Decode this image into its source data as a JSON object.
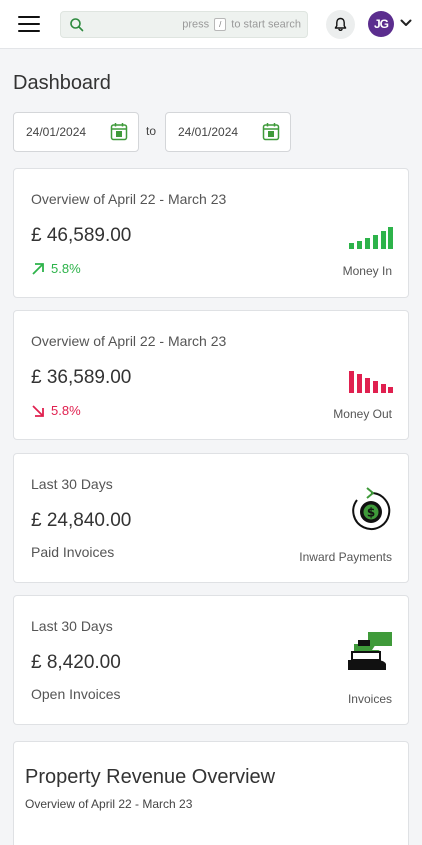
{
  "header": {
    "search": {
      "placeholder": "",
      "hint_before": "press",
      "hint_key": "/",
      "hint_after": "to start search"
    },
    "avatar_initials": "JG"
  },
  "page": {
    "title": "Dashboard",
    "date_from": "24/01/2024",
    "date_to": "24/01/2024",
    "to_label": "to"
  },
  "cards": [
    {
      "subtitle": "Overview of April 22 - March 23",
      "amount": "£ 46,589.00",
      "change": "5.8%",
      "change_direction": "up",
      "label": "Money In",
      "icon": "bar-chart-up-icon",
      "color": "#2db34a"
    },
    {
      "subtitle": "Overview of April 22 - March 23",
      "amount": "£ 36,589.00",
      "change": "5.8%",
      "change_direction": "down",
      "label": "Money Out",
      "icon": "bar-chart-down-icon",
      "color": "#e0204f"
    },
    {
      "subtitle": "Last 30 Days",
      "amount": "£ 24,840.00",
      "status": "Paid Invoices",
      "label": "Inward Payments",
      "icon": "inward-payment-icon"
    },
    {
      "subtitle": "Last 30 Days",
      "amount": "£ 8,420.00",
      "status": "Open Invoices",
      "label": "Invoices",
      "icon": "hand-money-icon"
    }
  ],
  "revenue": {
    "title": "Property Revenue Overview",
    "subtitle": "Overview of April 22 - March 23"
  }
}
